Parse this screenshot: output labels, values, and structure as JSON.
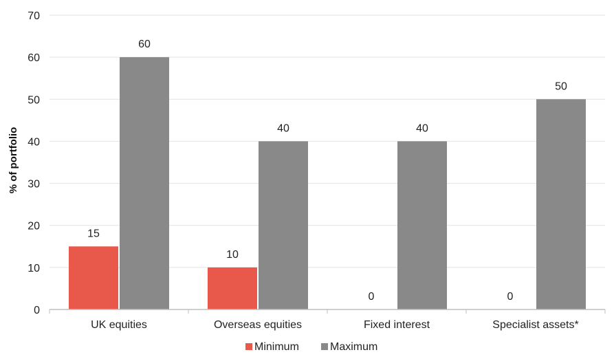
{
  "chart_data": {
    "type": "bar",
    "title": "",
    "xlabel": "",
    "ylabel": "% of portfolio",
    "categories": [
      "UK equities",
      "Overseas equities",
      "Fixed interest",
      "Specialist assets*"
    ],
    "series": [
      {
        "name": "Minimum",
        "color": "#e8594b",
        "values": [
          15,
          10,
          0,
          0
        ]
      },
      {
        "name": "Maximum",
        "color": "#898989",
        "values": [
          60,
          40,
          40,
          50
        ]
      }
    ],
    "ylim": [
      0,
      70
    ],
    "yticks": [
      0,
      10,
      20,
      30,
      40,
      50,
      60,
      70
    ],
    "grid": true,
    "legend_position": "bottom"
  }
}
